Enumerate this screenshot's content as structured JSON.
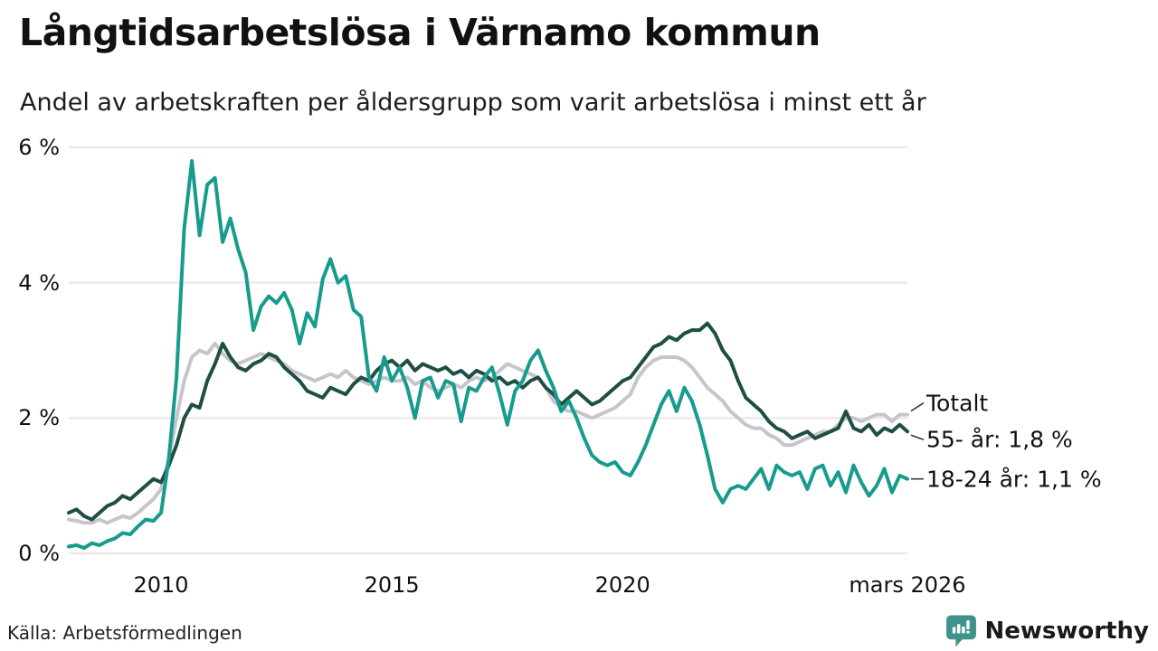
{
  "header": {
    "title": "Långtidsarbetslösa i Värnamo kommun",
    "subtitle": "Andel av arbetskraften per åldersgrupp som varit arbetslösa i minst ett år"
  },
  "source": {
    "label": "Källa: Arbetsförmedlingen"
  },
  "branding": {
    "name": "Newsworthy",
    "color": "#40938c"
  },
  "colors": {
    "grid": "#e7e7ea",
    "axis_text": "#111111",
    "connector": "#3a3a3a",
    "series_total": "#c6c5ce",
    "series_55": "#1e4f40",
    "series_1824": "#169b8d"
  },
  "chart_data": {
    "type": "line",
    "title": "Långtidsarbetslösa i Värnamo kommun",
    "subtitle": "Andel av arbetskraften per åldersgrupp som varit arbetslösa i minst ett år",
    "x_start": 2008,
    "x_end": 2026.17,
    "ylim": [
      0,
      6
    ],
    "grid": true,
    "x_ticks": [
      {
        "label": "2010",
        "x": 2010
      },
      {
        "label": "2015",
        "x": 2015
      },
      {
        "label": "2020",
        "x": 2020
      },
      {
        "label": "mars 2026",
        "x": 2026.17
      }
    ],
    "y_ticks": [
      {
        "label": "0 %",
        "y": 0
      },
      {
        "label": "2 %",
        "y": 2
      },
      {
        "label": "4 %",
        "y": 4
      },
      {
        "label": "6 %",
        "y": 6
      }
    ],
    "series": [
      {
        "name": "Totalt",
        "color": "#c6c5ce",
        "values": [
          0.5,
          0.48,
          0.45,
          0.45,
          0.5,
          0.45,
          0.5,
          0.55,
          0.52,
          0.6,
          0.7,
          0.8,
          0.95,
          1.4,
          2.0,
          2.55,
          2.9,
          3.0,
          2.95,
          3.1,
          2.95,
          2.85,
          2.8,
          2.85,
          2.9,
          2.95,
          2.9,
          2.85,
          2.8,
          2.7,
          2.65,
          2.6,
          2.55,
          2.6,
          2.65,
          2.6,
          2.7,
          2.6,
          2.55,
          2.5,
          2.55,
          2.6,
          2.55,
          2.55,
          2.6,
          2.5,
          2.55,
          2.45,
          2.4,
          2.45,
          2.5,
          2.45,
          2.55,
          2.6,
          2.55,
          2.6,
          2.7,
          2.8,
          2.75,
          2.7,
          2.65,
          2.6,
          2.45,
          2.25,
          2.15,
          2.1,
          2.1,
          2.05,
          2.0,
          2.05,
          2.1,
          2.15,
          2.25,
          2.35,
          2.6,
          2.75,
          2.85,
          2.9,
          2.9,
          2.9,
          2.85,
          2.75,
          2.6,
          2.45,
          2.35,
          2.25,
          2.1,
          2.0,
          1.9,
          1.85,
          1.85,
          1.75,
          1.7,
          1.6,
          1.6,
          1.65,
          1.7,
          1.75,
          1.8,
          1.8,
          1.9,
          2.0,
          2.0,
          1.95,
          2.0,
          2.05,
          2.05,
          1.95,
          2.05,
          2.05
        ]
      },
      {
        "name": "55- år",
        "color": "#1e4f40",
        "values": [
          0.6,
          0.65,
          0.55,
          0.5,
          0.6,
          0.7,
          0.75,
          0.85,
          0.8,
          0.9,
          1.0,
          1.1,
          1.05,
          1.3,
          1.6,
          2.0,
          2.2,
          2.15,
          2.55,
          2.8,
          3.1,
          2.9,
          2.75,
          2.7,
          2.8,
          2.85,
          2.95,
          2.9,
          2.75,
          2.65,
          2.55,
          2.4,
          2.35,
          2.3,
          2.45,
          2.4,
          2.35,
          2.5,
          2.6,
          2.55,
          2.7,
          2.8,
          2.85,
          2.75,
          2.85,
          2.7,
          2.8,
          2.75,
          2.7,
          2.75,
          2.65,
          2.7,
          2.6,
          2.7,
          2.65,
          2.55,
          2.6,
          2.5,
          2.55,
          2.45,
          2.55,
          2.6,
          2.45,
          2.35,
          2.2,
          2.3,
          2.4,
          2.3,
          2.2,
          2.25,
          2.35,
          2.45,
          2.55,
          2.6,
          2.75,
          2.9,
          3.05,
          3.1,
          3.2,
          3.15,
          3.25,
          3.3,
          3.3,
          3.4,
          3.25,
          3.0,
          2.85,
          2.55,
          2.3,
          2.2,
          2.1,
          1.95,
          1.85,
          1.8,
          1.7,
          1.75,
          1.8,
          1.7,
          1.75,
          1.8,
          1.85,
          2.1,
          1.85,
          1.8,
          1.9,
          1.75,
          1.85,
          1.8,
          1.9,
          1.8
        ]
      },
      {
        "name": "18-24 år",
        "color": "#169b8d",
        "values": [
          0.1,
          0.12,
          0.08,
          0.15,
          0.12,
          0.18,
          0.22,
          0.3,
          0.28,
          0.4,
          0.5,
          0.48,
          0.6,
          1.4,
          2.6,
          4.8,
          5.8,
          4.7,
          5.45,
          5.55,
          4.6,
          4.95,
          4.5,
          4.15,
          3.3,
          3.65,
          3.8,
          3.7,
          3.85,
          3.6,
          3.1,
          3.55,
          3.35,
          4.05,
          4.35,
          4.0,
          4.1,
          3.6,
          3.5,
          2.6,
          2.4,
          2.9,
          2.55,
          2.75,
          2.45,
          2.0,
          2.55,
          2.6,
          2.3,
          2.55,
          2.5,
          1.95,
          2.45,
          2.4,
          2.6,
          2.75,
          2.35,
          1.9,
          2.4,
          2.55,
          2.85,
          3.0,
          2.7,
          2.45,
          2.1,
          2.25,
          2.0,
          1.7,
          1.45,
          1.35,
          1.3,
          1.35,
          1.2,
          1.15,
          1.35,
          1.6,
          1.9,
          2.2,
          2.4,
          2.1,
          2.45,
          2.25,
          1.9,
          1.45,
          0.95,
          0.75,
          0.95,
          1.0,
          0.95,
          1.1,
          1.25,
          0.95,
          1.3,
          1.2,
          1.15,
          1.2,
          0.95,
          1.25,
          1.3,
          1.0,
          1.2,
          0.9,
          1.3,
          1.05,
          0.85,
          1.0,
          1.25,
          0.9,
          1.15,
          1.1
        ]
      }
    ],
    "end_labels": [
      {
        "text": "Totalt",
        "series": 0
      },
      {
        "text": "55- år: 1,8 %",
        "series": 1
      },
      {
        "text": "18-24 år: 1,1 %",
        "series": 2
      }
    ]
  }
}
